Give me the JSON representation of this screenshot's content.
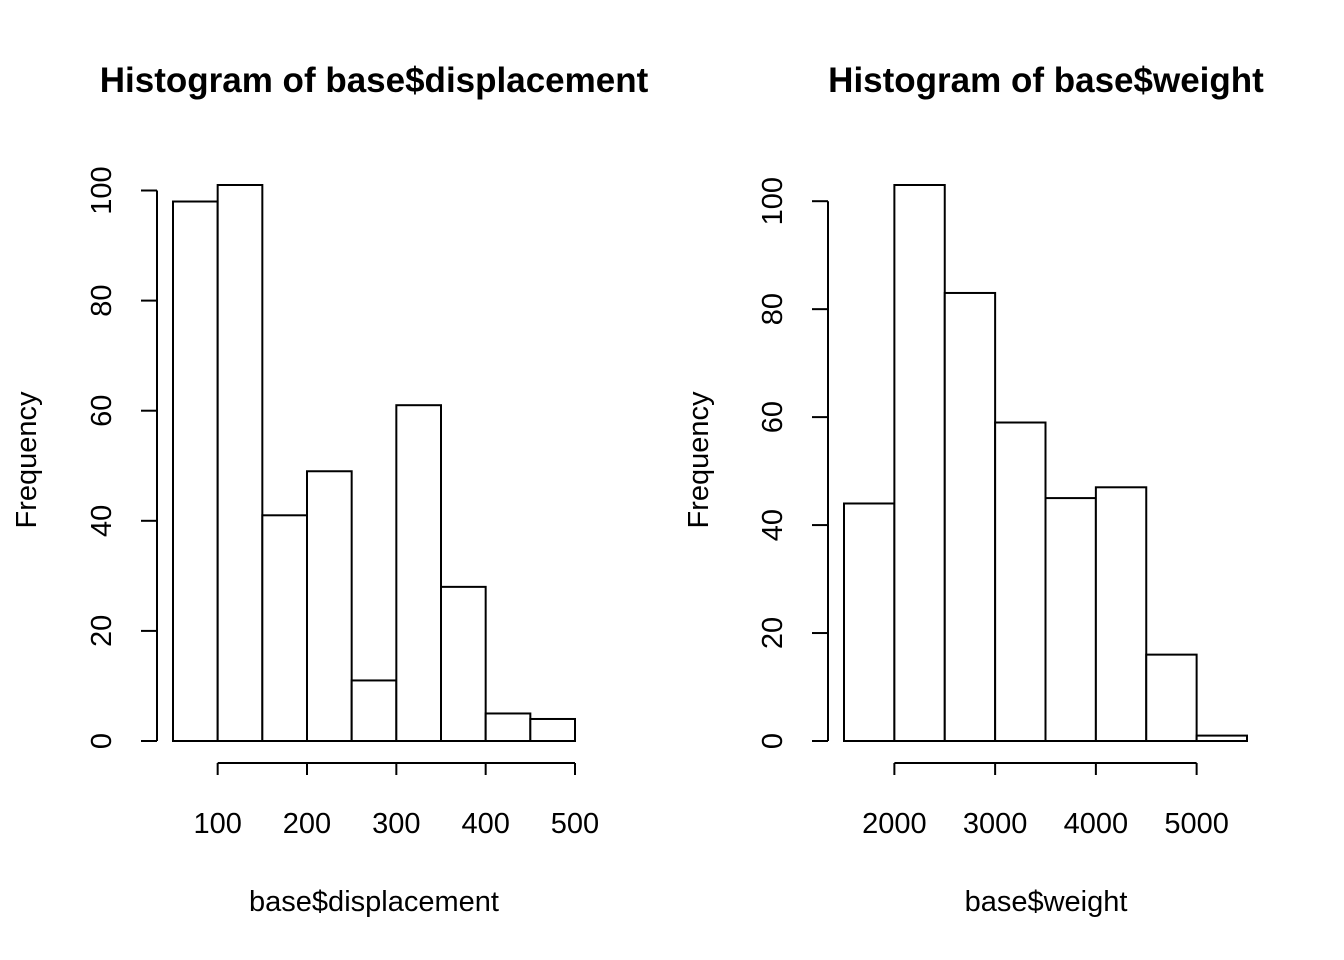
{
  "chart_data": [
    {
      "type": "bar",
      "title": "Histogram of base$displacement",
      "xlabel": "base$displacement",
      "ylabel": "Frequency",
      "bin_edges": [
        50,
        100,
        150,
        200,
        250,
        300,
        350,
        400,
        450,
        500
      ],
      "values": [
        98,
        101,
        41,
        49,
        11,
        61,
        28,
        5,
        4
      ],
      "xticks": [
        100,
        200,
        300,
        400,
        500
      ],
      "yticks": [
        0,
        20,
        40,
        60,
        80,
        100
      ],
      "xtick_labels": [
        "100",
        "200",
        "300",
        "400",
        "500"
      ],
      "ytick_labels": [
        "0",
        "20",
        "40",
        "60",
        "80",
        "100"
      ],
      "xlim": [
        50,
        500
      ],
      "ylim": [
        0,
        101
      ],
      "grid": false
    },
    {
      "type": "bar",
      "title": "Histogram of base$weight",
      "xlabel": "base$weight",
      "ylabel": "Frequency",
      "bin_edges": [
        1500,
        2000,
        2500,
        3000,
        3500,
        4000,
        4500,
        5000,
        5500
      ],
      "values": [
        44,
        103,
        83,
        59,
        45,
        47,
        16,
        1
      ],
      "xticks": [
        2000,
        3000,
        4000,
        5000
      ],
      "yticks": [
        0,
        20,
        40,
        60,
        80,
        100
      ],
      "xtick_labels": [
        "2000",
        "3000",
        "4000",
        "5000"
      ],
      "ytick_labels": [
        "0",
        "20",
        "40",
        "60",
        "80",
        "100"
      ],
      "xlim": [
        1500,
        5500
      ],
      "ylim": [
        0,
        103
      ],
      "grid": false
    }
  ]
}
